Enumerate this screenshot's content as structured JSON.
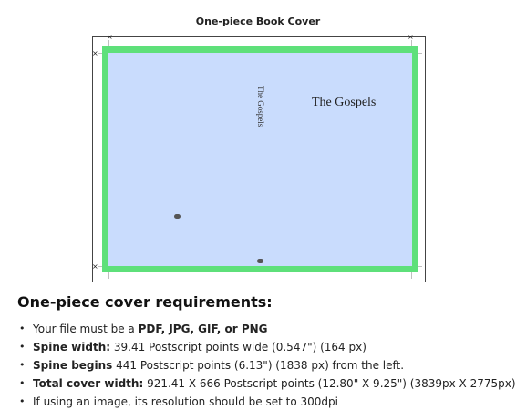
{
  "cover": {
    "title": "One-piece Book Cover",
    "spine_text": "The Gospels",
    "front_title": "The Gospels",
    "crop_mark_glyph": "×",
    "colors": {
      "cover_fill": "#c9dcfd",
      "safe_border": "#5ee07a",
      "frame": "#444444"
    }
  },
  "requirements": {
    "heading": "One-piece cover requirements:",
    "items": [
      {
        "plain": "Your file must be a ",
        "bold": "PDF, JPG, GIF, or PNG",
        "rest": ""
      },
      {
        "plain": "",
        "bold": "Spine width:",
        "rest": " 39.41 Postscript points wide (0.547\") (164 px)"
      },
      {
        "plain": "",
        "bold": "Spine begins",
        "rest": " 441 Postscript points (6.13\") (1838 px) from the left."
      },
      {
        "plain": "",
        "bold": "Total cover width:",
        "rest": " 921.41 X 666 Postscript points (12.80\" X 9.25\") (3839px X 2775px)"
      },
      {
        "plain": "If using an image, its resolution should be set to 300dpi",
        "bold": "",
        "rest": ""
      }
    ]
  }
}
